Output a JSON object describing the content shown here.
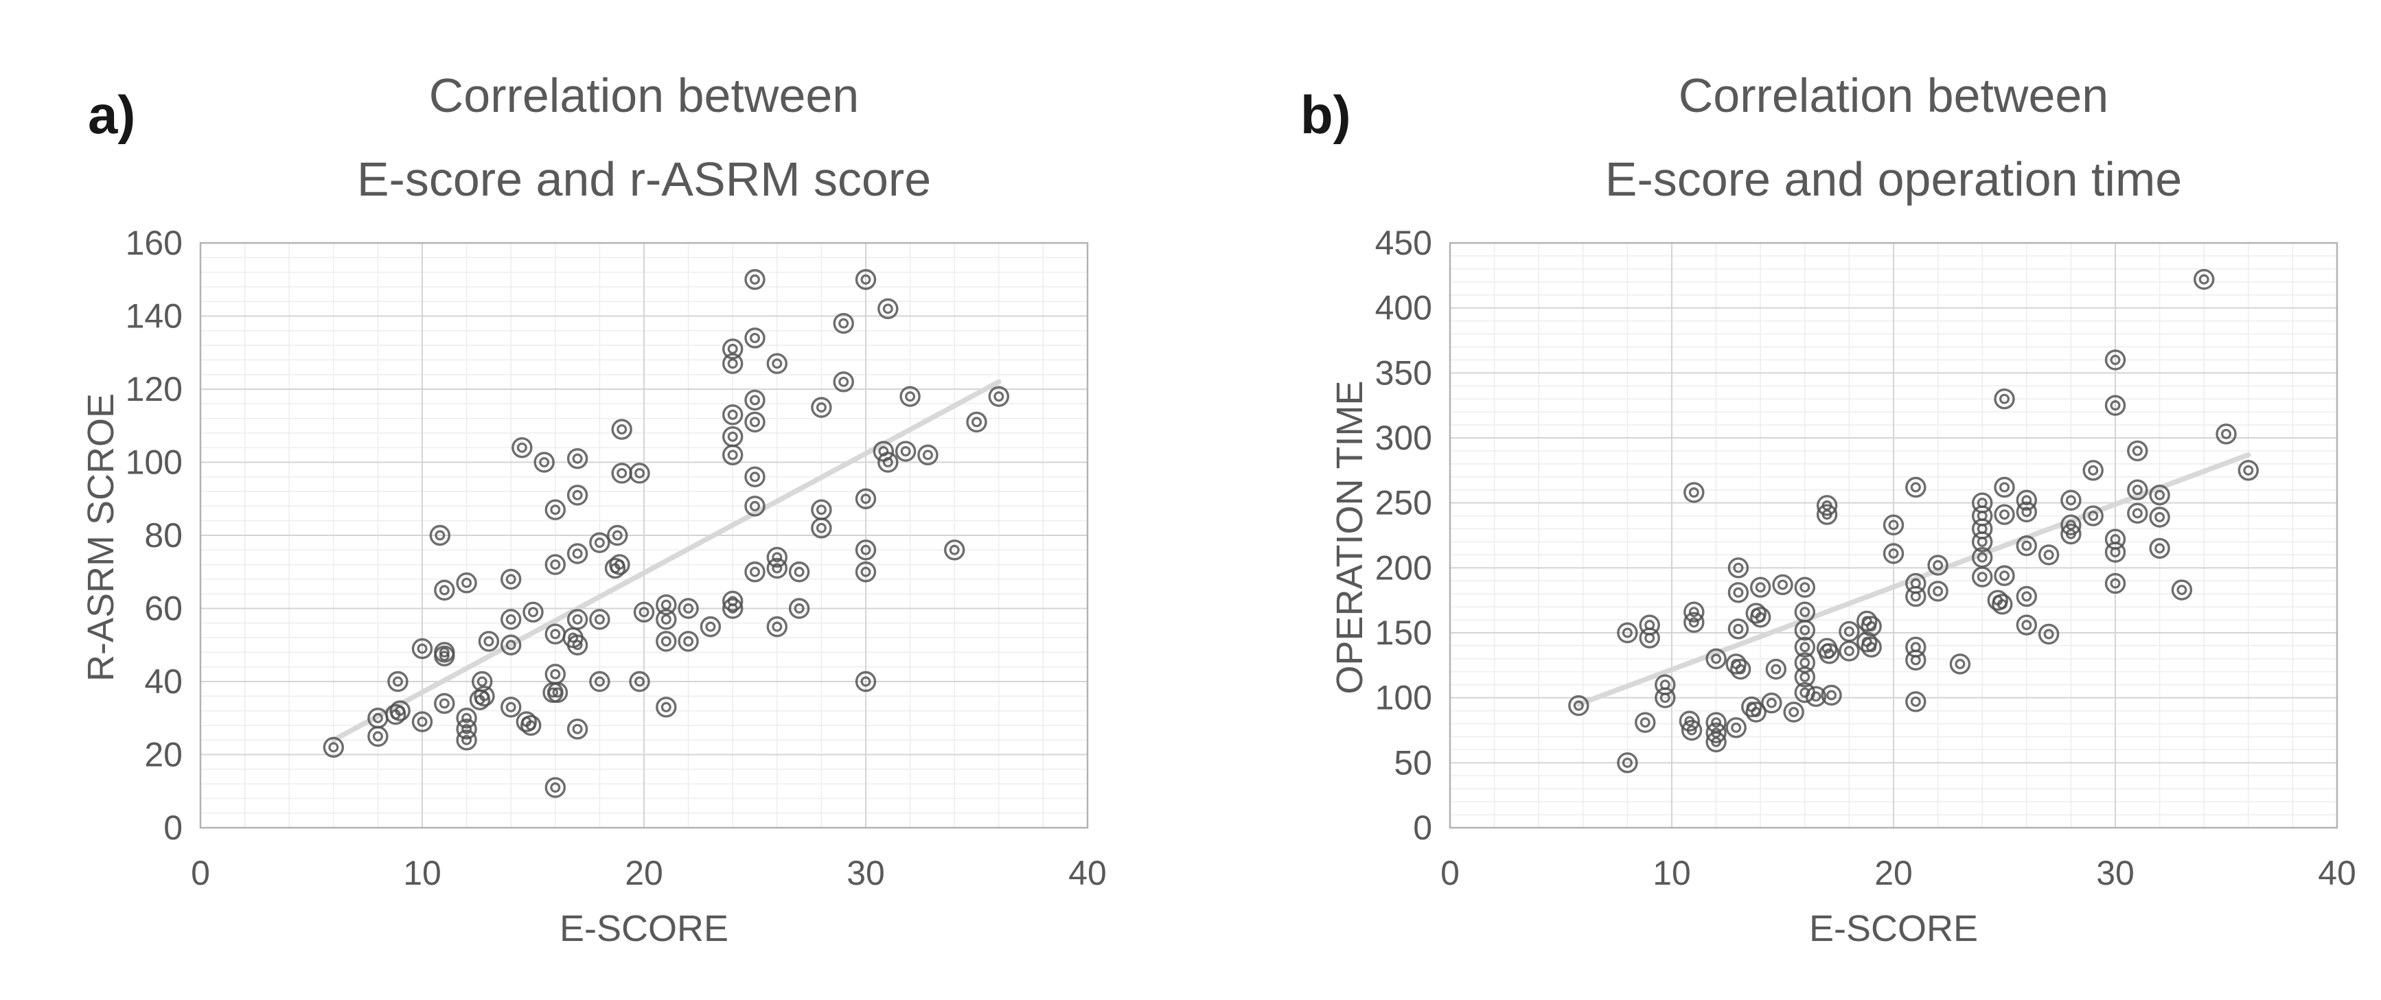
{
  "figure": {
    "background": "#ffffff",
    "text_color": "#595959",
    "letter_color": "#171717",
    "grid_minor_color": "#ededed",
    "grid_major_color": "#d4d4d4",
    "border_color": "#b3b3b3",
    "trend_color": "#d8d8d8",
    "marker_color": "#4d4d4d",
    "marker_icon": "double-ring-circle"
  },
  "chart_data": [
    {
      "type": "scatter",
      "panel_label": "a)",
      "title_lines": [
        "Correlation between",
        "E-score and r-ASRM score"
      ],
      "xlabel": "E-SCORE",
      "ylabel": "R-ASRM SCROE",
      "xlim": [
        0,
        40
      ],
      "ylim": [
        0,
        160
      ],
      "xticks": [
        0,
        10,
        20,
        30,
        40
      ],
      "yticks": [
        0,
        20,
        40,
        60,
        80,
        100,
        120,
        140,
        160
      ],
      "x_minor_step": 2,
      "y_minor_step": 4,
      "grid": "on",
      "legend": "none",
      "trendline": {
        "x1": 6,
        "y1": 24,
        "x2": 36,
        "y2": 122
      },
      "points": [
        [
          25,
          150
        ],
        [
          30,
          150
        ],
        [
          31,
          142
        ],
        [
          29,
          138
        ],
        [
          25,
          134
        ],
        [
          24,
          131
        ],
        [
          24,
          127
        ],
        [
          26,
          127
        ],
        [
          29,
          122
        ],
        [
          32,
          118
        ],
        [
          36,
          118
        ],
        [
          35,
          111
        ],
        [
          28,
          115
        ],
        [
          25,
          117
        ],
        [
          24,
          113
        ],
        [
          25,
          111
        ],
        [
          24,
          107
        ],
        [
          24,
          102
        ],
        [
          30.8,
          103
        ],
        [
          31.8,
          103
        ],
        [
          32.8,
          102
        ],
        [
          31,
          100
        ],
        [
          30,
          90
        ],
        [
          25,
          96
        ],
        [
          25,
          88
        ],
        [
          28,
          87
        ],
        [
          28,
          82
        ],
        [
          14.5,
          104
        ],
        [
          15.5,
          100
        ],
        [
          17,
          101
        ],
        [
          19,
          109
        ],
        [
          19,
          97
        ],
        [
          19.8,
          97
        ],
        [
          17,
          91
        ],
        [
          16,
          87
        ],
        [
          10.8,
          80
        ],
        [
          16,
          72
        ],
        [
          17,
          75
        ],
        [
          18,
          78
        ],
        [
          18.8,
          80
        ],
        [
          18.7,
          71
        ],
        [
          18.9,
          72
        ],
        [
          14,
          68
        ],
        [
          11,
          65
        ],
        [
          12,
          67
        ],
        [
          14,
          57
        ],
        [
          15,
          59
        ],
        [
          17,
          57
        ],
        [
          18,
          57
        ],
        [
          16,
          53
        ],
        [
          16.8,
          52
        ],
        [
          17,
          50
        ],
        [
          10,
          49
        ],
        [
          11,
          48
        ],
        [
          11,
          47
        ],
        [
          13,
          51
        ],
        [
          14,
          50
        ],
        [
          8.9,
          40
        ],
        [
          8.8,
          31
        ],
        [
          9,
          32
        ],
        [
          8,
          30
        ],
        [
          8,
          25
        ],
        [
          6,
          22
        ],
        [
          10,
          29
        ],
        [
          11,
          34
        ],
        [
          12,
          30
        ],
        [
          12,
          27
        ],
        [
          12,
          24
        ],
        [
          12.7,
          40
        ],
        [
          12.6,
          35
        ],
        [
          12.8,
          36
        ],
        [
          14,
          33
        ],
        [
          14.7,
          29
        ],
        [
          14.9,
          28
        ],
        [
          16,
          42
        ],
        [
          15.9,
          37
        ],
        [
          16.1,
          37
        ],
        [
          17,
          27
        ],
        [
          18,
          40
        ],
        [
          19.8,
          40
        ],
        [
          21,
          33
        ],
        [
          16,
          11
        ],
        [
          21,
          61
        ],
        [
          21,
          57
        ],
        [
          22,
          60
        ],
        [
          23,
          55
        ],
        [
          24,
          62
        ],
        [
          20,
          59
        ],
        [
          21,
          51
        ],
        [
          22,
          51
        ],
        [
          30,
          76
        ],
        [
          30,
          70
        ],
        [
          34,
          76
        ],
        [
          25,
          70
        ],
        [
          26,
          74
        ],
        [
          26,
          71
        ],
        [
          27,
          70
        ],
        [
          24,
          60
        ],
        [
          27,
          60
        ],
        [
          26,
          55
        ],
        [
          30,
          40
        ]
      ]
    },
    {
      "type": "scatter",
      "panel_label": "b)",
      "title_lines": [
        "Correlation between",
        "E-score and operation time"
      ],
      "xlabel": "E-SCORE",
      "ylabel": "OPERATION TIME",
      "xlim": [
        0,
        40
      ],
      "ylim": [
        0,
        450
      ],
      "xticks": [
        0,
        10,
        20,
        30,
        40
      ],
      "yticks": [
        0,
        50,
        100,
        150,
        200,
        250,
        300,
        350,
        400,
        450
      ],
      "x_minor_step": 2,
      "y_minor_step": 10,
      "grid": "on",
      "legend": "none",
      "trendline": {
        "x1": 5.8,
        "y1": 95,
        "x2": 36,
        "y2": 287
      },
      "points": [
        [
          34,
          422
        ],
        [
          30,
          360
        ],
        [
          25,
          330
        ],
        [
          30,
          325
        ],
        [
          35,
          303
        ],
        [
          31,
          290
        ],
        [
          36,
          275
        ],
        [
          29,
          275
        ],
        [
          11,
          258
        ],
        [
          25,
          262
        ],
        [
          21,
          262
        ],
        [
          31,
          260
        ],
        [
          32,
          256
        ],
        [
          26,
          252
        ],
        [
          28,
          252
        ],
        [
          24,
          250
        ],
        [
          17,
          248
        ],
        [
          26,
          243
        ],
        [
          31,
          242
        ],
        [
          24,
          240
        ],
        [
          25,
          241
        ],
        [
          17,
          241
        ],
        [
          29,
          240
        ],
        [
          32,
          239
        ],
        [
          20,
          233
        ],
        [
          28,
          233
        ],
        [
          24,
          230
        ],
        [
          28,
          226
        ],
        [
          30,
          222
        ],
        [
          24,
          220
        ],
        [
          26,
          217
        ],
        [
          32,
          215
        ],
        [
          30,
          212
        ],
        [
          20,
          211
        ],
        [
          27,
          210
        ],
        [
          24,
          208
        ],
        [
          22,
          202
        ],
        [
          13,
          200
        ],
        [
          25,
          194
        ],
        [
          24,
          193
        ],
        [
          30,
          188
        ],
        [
          21,
          188
        ],
        [
          15,
          187
        ],
        [
          14,
          185
        ],
        [
          16,
          185
        ],
        [
          33,
          183
        ],
        [
          22,
          182
        ],
        [
          13,
          181
        ],
        [
          21,
          178
        ],
        [
          26,
          178
        ],
        [
          24.7,
          175
        ],
        [
          24.9,
          172
        ],
        [
          11,
          166
        ],
        [
          16,
          166
        ],
        [
          13.8,
          165
        ],
        [
          14,
          162
        ],
        [
          18.8,
          159
        ],
        [
          11,
          158
        ],
        [
          9,
          156
        ],
        [
          26,
          156
        ],
        [
          19,
          155
        ],
        [
          13,
          153
        ],
        [
          16,
          152
        ],
        [
          18,
          151
        ],
        [
          8,
          150
        ],
        [
          27,
          149
        ],
        [
          9,
          146
        ],
        [
          18.8,
          143
        ],
        [
          19,
          139
        ],
        [
          16,
          139
        ],
        [
          21,
          139
        ],
        [
          17,
          138
        ],
        [
          18,
          136
        ],
        [
          17.1,
          134
        ],
        [
          12,
          130
        ],
        [
          21,
          129
        ],
        [
          16,
          127
        ],
        [
          23,
          126
        ],
        [
          12.9,
          126
        ],
        [
          13.1,
          122
        ],
        [
          14.7,
          122
        ],
        [
          16,
          116
        ],
        [
          9.7,
          110
        ],
        [
          16,
          104
        ],
        [
          17.2,
          102
        ],
        [
          16.5,
          101
        ],
        [
          9.7,
          100
        ],
        [
          21,
          97
        ],
        [
          14.5,
          96
        ],
        [
          5.8,
          94
        ],
        [
          13.6,
          93
        ],
        [
          15.5,
          89
        ],
        [
          13.8,
          89
        ],
        [
          10.8,
          82
        ],
        [
          12,
          81
        ],
        [
          8.8,
          81
        ],
        [
          12.9,
          77
        ],
        [
          10.9,
          75
        ],
        [
          12,
          73
        ],
        [
          12,
          66
        ],
        [
          8,
          50
        ]
      ]
    }
  ]
}
